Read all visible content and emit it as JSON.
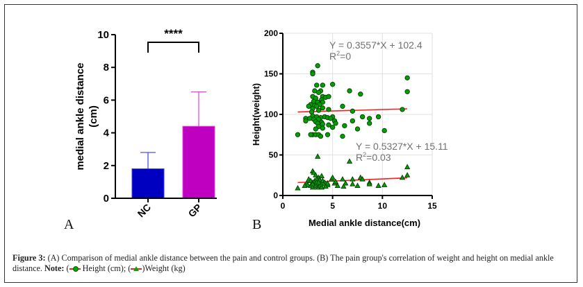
{
  "figure": {
    "panel_a_letter": "A",
    "panel_b_letter": "B",
    "caption": {
      "label": "Figure 3:",
      "text1": " (A) Comparison of medial ankle distance between the pain and control groups. (B) The pain group's correlation of weight and height on medial ankle distance. ",
      "note_label": "Note:",
      "legend_height": " Height (cm); (",
      "legend_weight": "Weight (kg)",
      "open_paren": " ("
    }
  },
  "chart_data": [
    {
      "type": "bar",
      "panel": "A",
      "title": "",
      "xlabel": "",
      "ylabel": "medial ankle distance (cm)",
      "ylabel_line1": "medial ankle distance",
      "ylabel_line2": "(cm)",
      "ylim": [
        0,
        10
      ],
      "yticks": [
        0,
        2,
        4,
        6,
        8,
        10
      ],
      "categories": [
        "NC",
        "GP"
      ],
      "values": [
        1.8,
        4.4
      ],
      "error_upper": [
        2.8,
        6.5
      ],
      "colors": [
        "#0000c0",
        "#c000c0"
      ],
      "significance": "****",
      "grid": false
    },
    {
      "type": "scatter",
      "panel": "B",
      "title": "",
      "xlabel": "Medial ankle distance(cm)",
      "ylabel": "Height(weight)",
      "xlim": [
        0,
        15
      ],
      "ylim": [
        0,
        200
      ],
      "xticks": [
        0,
        5,
        10,
        15
      ],
      "yticks": [
        0,
        50,
        100,
        150,
        200
      ],
      "grid": true,
      "series": [
        {
          "name": "Height (cm)",
          "marker": "circle",
          "color": "#00a000",
          "fit": {
            "slope": 0.3557,
            "intercept": 102.4,
            "x_range": [
              1.5,
              12.5
            ],
            "equation": "Y = 0.3557*X + 102.4",
            "r2_label": "R",
            "r2_sup": "2",
            "r2_value": "=0"
          },
          "points": [
            [
              3.5,
              160
            ],
            [
              3.0,
              152
            ],
            [
              3.0,
              150
            ],
            [
              3.4,
              136
            ],
            [
              4.0,
              136
            ],
            [
              5.0,
              137
            ],
            [
              3.2,
              129
            ],
            [
              3.8,
              129
            ],
            [
              3.6,
              127
            ],
            [
              3.0,
              122
            ],
            [
              4.0,
              122
            ],
            [
              4.3,
              121
            ],
            [
              4.6,
              122
            ],
            [
              3.3,
              120
            ],
            [
              3.9,
              118
            ],
            [
              3.1,
              116
            ],
            [
              3.5,
              115
            ],
            [
              4.0,
              115
            ],
            [
              3.7,
              112
            ],
            [
              2.8,
              112
            ],
            [
              3.2,
              111
            ],
            [
              3.4,
              110
            ],
            [
              2.6,
              110
            ],
            [
              4.0,
              108
            ],
            [
              3.0,
              107
            ],
            [
              3.6,
              105
            ],
            [
              2.9,
              103
            ],
            [
              4.6,
              106
            ],
            [
              6.0,
              110
            ],
            [
              6.7,
              129
            ],
            [
              7.8,
              125
            ],
            [
              7.0,
              104
            ],
            [
              12.0,
              106
            ],
            [
              12.5,
              145
            ],
            [
              12.5,
              128
            ],
            [
              3.0,
              98
            ],
            [
              3.4,
              97
            ],
            [
              3.8,
              96
            ],
            [
              4.2,
              97
            ],
            [
              4.5,
              96
            ],
            [
              5.0,
              97
            ],
            [
              3.1,
              94
            ],
            [
              3.6,
              94
            ],
            [
              2.3,
              95
            ],
            [
              2.3,
              92
            ],
            [
              2.7,
              95
            ],
            [
              4.8,
              95
            ],
            [
              3.3,
              91
            ],
            [
              3.9,
              90
            ],
            [
              5.2,
              92
            ],
            [
              5.3,
              89
            ],
            [
              3.5,
              89
            ],
            [
              4.0,
              88
            ],
            [
              4.6,
              87
            ],
            [
              3.6,
              85
            ],
            [
              4.0,
              83
            ],
            [
              3.3,
              82
            ],
            [
              5.0,
              84
            ],
            [
              6.2,
              86
            ],
            [
              7.0,
              92
            ],
            [
              7.5,
              82
            ],
            [
              8.0,
              97
            ],
            [
              8.7,
              95
            ],
            [
              8.7,
              89
            ],
            [
              9.6,
              97
            ],
            [
              10.2,
              80
            ],
            [
              3.0,
              75
            ],
            [
              3.3,
              75
            ],
            [
              3.6,
              75
            ],
            [
              3.8,
              73
            ],
            [
              1.5,
              75
            ],
            [
              4.5,
              75
            ],
            [
              6.0,
              73
            ],
            [
              2.8,
              75
            ]
          ]
        },
        {
          "name": "Weight (kg)",
          "marker": "triangle",
          "color": "#00a000",
          "fit": {
            "slope": 0.5327,
            "intercept": 15.11,
            "x_range": [
              1.5,
              12.5
            ],
            "equation": "Y = 0.5327*X + 15.11",
            "r2_label": "R",
            "r2_sup": "2",
            "r2_value": "=0.03"
          },
          "points": [
            [
              3.5,
              48
            ],
            [
              6.7,
              42
            ],
            [
              12.5,
              35
            ],
            [
              12.5,
              25
            ],
            [
              12.0,
              22
            ],
            [
              3.0,
              30
            ],
            [
              3.1,
              28
            ],
            [
              3.3,
              25
            ],
            [
              3.6,
              22
            ],
            [
              3.9,
              24
            ],
            [
              2.6,
              20
            ],
            [
              2.8,
              18
            ],
            [
              3.0,
              16
            ],
            [
              3.2,
              18
            ],
            [
              3.4,
              20
            ],
            [
              3.7,
              19
            ],
            [
              4.0,
              18
            ],
            [
              4.2,
              16
            ],
            [
              2.4,
              15
            ],
            [
              2.5,
              13
            ],
            [
              2.8,
              12
            ],
            [
              3.0,
              10
            ],
            [
              3.3,
              12
            ],
            [
              3.5,
              10
            ],
            [
              3.7,
              12
            ],
            [
              3.9,
              10
            ],
            [
              4.1,
              14
            ],
            [
              4.5,
              13
            ],
            [
              4.5,
              15
            ],
            [
              4.9,
              20
            ],
            [
              5.0,
              22
            ],
            [
              5.2,
              15
            ],
            [
              5.3,
              17
            ],
            [
              5.5,
              12
            ],
            [
              6.0,
              20
            ],
            [
              6.1,
              11
            ],
            [
              6.3,
              15
            ],
            [
              7.0,
              20
            ],
            [
              7.0,
              14
            ],
            [
              7.5,
              12
            ],
            [
              7.8,
              22
            ],
            [
              8.0,
              20
            ],
            [
              8.7,
              16
            ],
            [
              8.7,
              14
            ],
            [
              9.6,
              12
            ],
            [
              10.2,
              13
            ],
            [
              1.5,
              9
            ],
            [
              3.0,
              14
            ],
            [
              3.4,
              16
            ],
            [
              3.8,
              14
            ],
            [
              4.3,
              11
            ],
            [
              2.2,
              12
            ],
            [
              3.6,
              16
            ]
          ]
        }
      ]
    }
  ]
}
